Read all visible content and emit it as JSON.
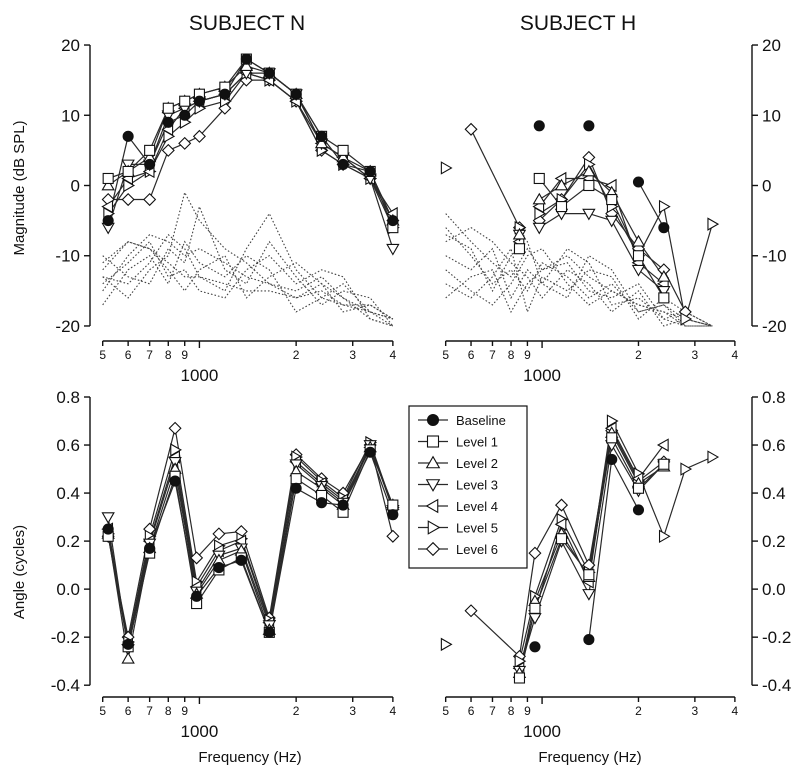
{
  "titles": {
    "left": "SUBJECT N",
    "right": "SUBJECT H"
  },
  "axis_titles": {
    "magnitude": "Magnitude (dB SPL)",
    "angle": "Angle (cycles)",
    "frequency": "Frequency (Hz)"
  },
  "frequency_ticks": {
    "minor_labels": [
      {
        "f": 500,
        "label": "5"
      },
      {
        "f": 600,
        "label": "6"
      },
      {
        "f": 700,
        "label": "7"
      },
      {
        "f": 800,
        "label": "8"
      },
      {
        "f": 900,
        "label": "9"
      },
      {
        "f": 2000,
        "label": "2"
      },
      {
        "f": 3000,
        "label": "3"
      },
      {
        "f": 4000,
        "label": "4"
      }
    ],
    "major_label": {
      "f": 1000,
      "label": "1000"
    }
  },
  "magnitude_ticks": [
    {
      "v": 20,
      "label": "20"
    },
    {
      "v": 10,
      "label": "10"
    },
    {
      "v": 0,
      "label": "0"
    },
    {
      "v": -10,
      "label": "-10"
    },
    {
      "v": -20,
      "label": "-20"
    }
  ],
  "angle_ticks": [
    {
      "v": 0.8,
      "label": "0.8"
    },
    {
      "v": 0.6,
      "label": "0.6"
    },
    {
      "v": 0.4,
      "label": "0.4"
    },
    {
      "v": 0.2,
      "label": "0.2"
    },
    {
      "v": 0.0,
      "label": "0.0"
    },
    {
      "v": -0.2,
      "label": "-0.2"
    },
    {
      "v": -0.4,
      "label": "-0.4"
    }
  ],
  "legend": [
    {
      "label": "Baseline",
      "marker": "circle"
    },
    {
      "label": "Level 1",
      "marker": "square"
    },
    {
      "label": "Level 2",
      "marker": "tri-up"
    },
    {
      "label": "Level 3",
      "marker": "tri-down"
    },
    {
      "label": "Level 4",
      "marker": "tri-left"
    },
    {
      "label": "Level 5",
      "marker": "tri-right"
    },
    {
      "label": "Level 6",
      "marker": "diamond"
    }
  ],
  "colors": {
    "ink": "#111111",
    "series_line": "#2a2a2a",
    "dotted": "#444444",
    "marker_fill": "#ffffff"
  },
  "chart_data": [
    {
      "id": "mag-n",
      "type": "line",
      "title": "SUBJECT N",
      "xlabel": "",
      "ylabel": "Magnitude (dB SPL)",
      "xscale": "log",
      "xlim": [
        480,
        4150
      ],
      "ylim": [
        -21,
        21
      ],
      "y_axis_side": "left",
      "x": [
        520,
        600,
        700,
        800,
        900,
        1000,
        1200,
        1400,
        1650,
        2000,
        2400,
        2800,
        3400,
        4000
      ],
      "series": [
        {
          "name": "Baseline",
          "values": [
            -5,
            7,
            3,
            9,
            10,
            12,
            13,
            18,
            16,
            13,
            7,
            3,
            2,
            -5
          ]
        },
        {
          "name": "Level 1",
          "values": [
            1,
            2,
            5,
            11,
            12,
            13,
            14,
            18,
            16,
            13,
            7,
            5,
            2,
            -6
          ]
        },
        {
          "name": "Level 2",
          "values": [
            0,
            2,
            4,
            11,
            12,
            13,
            14,
            17,
            16,
            13,
            6,
            4,
            2,
            -5
          ]
        },
        {
          "name": "Level 3",
          "values": [
            -6,
            3,
            3,
            10,
            11,
            12,
            13,
            16,
            16,
            13,
            6,
            4,
            1,
            -9
          ]
        },
        {
          "name": "Level 4",
          "values": [
            -3,
            1,
            2,
            8,
            11,
            12,
            13,
            16,
            15,
            12,
            6,
            4,
            1,
            -4
          ]
        },
        {
          "name": "Level 5",
          "values": [
            -4,
            0,
            2,
            7,
            9,
            11,
            12,
            16,
            15,
            12,
            5,
            3,
            1,
            -6
          ]
        },
        {
          "name": "Level 6",
          "values": [
            -2,
            -2,
            -2,
            5,
            6,
            7,
            11,
            15,
            15,
            12,
            5,
            3,
            1,
            -5
          ]
        }
      ],
      "noise_x": [
        500,
        600,
        700,
        800,
        900,
        1000,
        1200,
        1400,
        1650,
        2000,
        2400,
        2800,
        3400,
        4000
      ],
      "noise_floor": [
        [
          -12,
          -8,
          -9,
          -11,
          -13,
          -13,
          -14,
          -15,
          -15,
          -16,
          -14,
          -16,
          -18,
          -19
        ],
        [
          -15,
          -10,
          -7,
          -8,
          -10,
          -9,
          -11,
          -13,
          -14,
          -16,
          -15,
          -17,
          -17,
          -19
        ],
        [
          -13,
          -16,
          -12,
          -10,
          -1,
          -5,
          -9,
          -11,
          -14,
          -15,
          -13,
          -16,
          -19,
          -20
        ],
        [
          -17,
          -12,
          -10,
          -14,
          -8,
          -11,
          -13,
          -10,
          -12,
          -18,
          -16,
          -14,
          -18,
          -20
        ],
        [
          -10,
          -13,
          -14,
          -9,
          -11,
          -3,
          -12,
          -14,
          -8,
          -13,
          -17,
          -15,
          -16,
          -20
        ],
        [
          -11,
          -8,
          -9,
          -12,
          -15,
          -12,
          -10,
          -16,
          -13,
          -11,
          -14,
          -18,
          -17,
          -19
        ],
        [
          -14,
          -11,
          -8,
          -13,
          -12,
          -15,
          -16,
          -12,
          -10,
          -14,
          -12,
          -13,
          -19,
          -20
        ],
        [
          -13,
          -14,
          -11,
          -7,
          -9,
          -13,
          -15,
          -9,
          -4,
          -12,
          -16,
          -17,
          -18,
          -19
        ]
      ]
    },
    {
      "id": "mag-h",
      "type": "line",
      "title": "SUBJECT H",
      "xlabel": "",
      "ylabel": "",
      "xscale": "log",
      "xlim": [
        480,
        4150
      ],
      "ylim": [
        -21,
        21
      ],
      "y_axis_side": "right",
      "x": [
        500,
        600,
        850,
        900,
        980,
        1150,
        1400,
        1650,
        2000,
        2400,
        2800,
        3400
      ],
      "series": [
        {
          "name": "Baseline",
          "values": [
            null,
            null,
            null,
            null,
            8.5,
            null,
            8.5,
            null,
            0.5,
            -6,
            null,
            null
          ]
        },
        {
          "name": "Level 1",
          "values": [
            null,
            null,
            -9,
            null,
            1,
            -3,
            0,
            -2,
            -10,
            -16,
            null,
            null
          ]
        },
        {
          "name": "Level 2",
          "values": [
            null,
            null,
            -7,
            null,
            -2,
            0,
            2,
            -1,
            -8,
            -13,
            null,
            null
          ]
        },
        {
          "name": "Level 3",
          "values": [
            null,
            null,
            -7,
            null,
            -6,
            -4,
            -4,
            -5,
            -12,
            -15,
            null,
            null
          ]
        },
        {
          "name": "Level 4",
          "values": [
            null,
            null,
            -8,
            null,
            -3,
            1,
            1,
            0,
            -11,
            -14,
            null,
            null
          ]
        },
        {
          "name": "Level 5",
          "values": [
            2.5,
            null,
            -6,
            null,
            -4,
            -2,
            3,
            -3,
            -10,
            -3,
            -19,
            -5.5
          ]
        },
        {
          "name": "Level 6",
          "values": [
            null,
            8,
            -6,
            null,
            -5,
            -2,
            4,
            -4,
            -9,
            -12,
            -18,
            null
          ]
        }
      ],
      "noise_x": [
        500,
        600,
        700,
        800,
        900,
        1000,
        1200,
        1400,
        1650,
        2000,
        2400,
        2800,
        3400
      ],
      "noise_floor": [
        [
          -4,
          -8,
          -11,
          -13,
          -9,
          -12,
          -10,
          -13,
          -15,
          -17,
          -18,
          -19,
          -20
        ],
        [
          -6,
          -10,
          -14,
          -12,
          -15,
          -11,
          -13,
          -16,
          -14,
          -18,
          -17,
          -19,
          -20
        ],
        [
          -10,
          -12,
          -9,
          -16,
          -12,
          -14,
          -9,
          -11,
          -17,
          -16,
          -19,
          -20,
          -20
        ],
        [
          -14,
          -16,
          -13,
          -9,
          -18,
          -13,
          -15,
          -12,
          -13,
          -19,
          -16,
          -18,
          -20
        ],
        [
          -8,
          -6,
          -8,
          -11,
          -13,
          -16,
          -12,
          -14,
          -18,
          -15,
          -20,
          -19,
          -20
        ],
        [
          -12,
          -15,
          -17,
          -14,
          -10,
          -9,
          -14,
          -17,
          -15,
          -17,
          -18,
          -20,
          -20
        ],
        [
          -16,
          -13,
          -12,
          -18,
          -14,
          -12,
          -11,
          -15,
          -16,
          -14,
          -19,
          -18,
          -20
        ],
        [
          -7,
          -9,
          -15,
          -10,
          -8,
          -14,
          -16,
          -10,
          -12,
          -18,
          -17,
          -20,
          -20
        ]
      ]
    },
    {
      "id": "ang-n",
      "type": "line",
      "title": "",
      "xlabel": "Frequency (Hz)",
      "ylabel": "Angle (cycles)",
      "xscale": "log",
      "xlim": [
        480,
        4150
      ],
      "ylim": [
        -0.42,
        0.8
      ],
      "y_axis_side": "left",
      "x": [
        520,
        600,
        700,
        840,
        980,
        1150,
        1350,
        1650,
        2000,
        2400,
        2800,
        3400,
        4000
      ],
      "series": [
        {
          "name": "Baseline",
          "values": [
            0.25,
            -0.23,
            0.17,
            0.45,
            -0.03,
            0.09,
            0.12,
            -0.18,
            0.42,
            0.36,
            0.35,
            0.57,
            0.31
          ]
        },
        {
          "name": "Level 1",
          "values": [
            0.22,
            -0.24,
            0.15,
            0.47,
            -0.06,
            0.08,
            0.13,
            -0.18,
            0.46,
            0.39,
            0.32,
            0.58,
            0.35
          ]
        },
        {
          "name": "Level 2",
          "values": [
            0.23,
            -0.29,
            0.17,
            0.5,
            -0.02,
            0.12,
            0.16,
            -0.17,
            0.49,
            0.42,
            0.35,
            0.59,
            0.35
          ]
        },
        {
          "name": "Level 3",
          "values": [
            0.3,
            -0.25,
            0.19,
            0.53,
            -0.01,
            0.14,
            0.17,
            -0.15,
            0.52,
            0.43,
            0.36,
            0.6,
            0.33
          ]
        },
        {
          "name": "Level 4",
          "values": [
            0.25,
            -0.23,
            0.2,
            0.55,
            0.01,
            0.16,
            0.2,
            -0.14,
            0.53,
            0.44,
            0.37,
            0.59,
            0.34
          ]
        },
        {
          "name": "Level 5",
          "values": [
            0.23,
            -0.22,
            0.22,
            0.58,
            0.03,
            0.18,
            0.21,
            -0.13,
            0.55,
            0.45,
            0.38,
            0.61,
            0.34
          ]
        },
        {
          "name": "Level 6",
          "values": [
            0.22,
            -0.2,
            0.25,
            0.67,
            0.13,
            0.23,
            0.24,
            -0.12,
            0.56,
            0.46,
            0.4,
            0.6,
            0.22
          ]
        }
      ]
    },
    {
      "id": "ang-h",
      "type": "line",
      "title": "",
      "xlabel": "Frequency (Hz)",
      "ylabel": "",
      "xscale": "log",
      "xlim": [
        480,
        4150
      ],
      "ylim": [
        -0.42,
        0.8
      ],
      "y_axis_side": "right",
      "x": [
        500,
        600,
        850,
        950,
        1150,
        1400,
        1650,
        2000,
        2400,
        2800,
        3400
      ],
      "series": [
        {
          "name": "Baseline",
          "values": [
            null,
            null,
            null,
            -0.24,
            null,
            -0.21,
            0.54,
            0.33,
            null,
            null,
            null
          ]
        },
        {
          "name": "Level 1",
          "values": [
            null,
            null,
            -0.37,
            -0.08,
            0.21,
            0.06,
            0.63,
            0.42,
            0.52,
            null,
            null
          ]
        },
        {
          "name": "Level 2",
          "values": [
            null,
            null,
            -0.35,
            -0.05,
            0.23,
            0.05,
            0.65,
            0.44,
            0.51,
            null,
            null
          ]
        },
        {
          "name": "Level 3",
          "values": [
            null,
            null,
            -0.34,
            -0.12,
            0.2,
            -0.02,
            0.6,
            0.41,
            0.52,
            null,
            null
          ]
        },
        {
          "name": "Level 4",
          "values": [
            null,
            null,
            -0.33,
            -0.09,
            0.27,
            0.03,
            0.67,
            0.46,
            0.6,
            null,
            null
          ]
        },
        {
          "name": "Level 5",
          "values": [
            -0.23,
            null,
            -0.3,
            -0.03,
            0.29,
            0.07,
            0.7,
            0.48,
            0.22,
            0.5,
            0.55
          ]
        },
        {
          "name": "Level 6",
          "values": [
            null,
            -0.09,
            -0.28,
            0.15,
            0.35,
            0.1,
            0.66,
            0.45,
            0.53,
            null,
            null
          ]
        }
      ]
    }
  ]
}
